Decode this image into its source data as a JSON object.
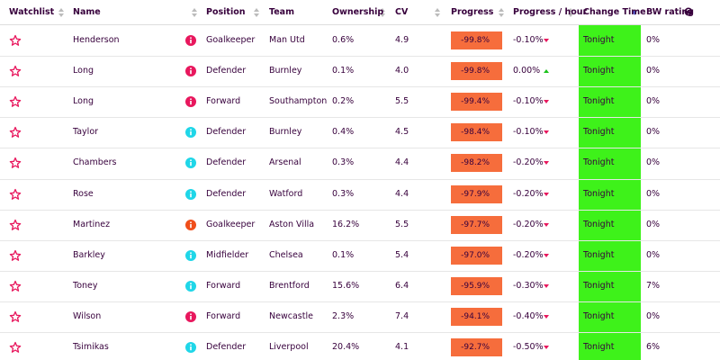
{
  "table": {
    "headers": [
      "Watchlist",
      "Name",
      "Position",
      "Team",
      "Ownership",
      "CV",
      "Progress",
      "Progress / hour",
      "Change Time",
      "BW rating"
    ],
    "rows": [
      {
        "name": "Henderson",
        "icon_color": "#e8175d",
        "position": "Goalkeeper",
        "team": "Man Utd",
        "ownership": "0.6%",
        "cv": "4.9",
        "progress": "-99.8%",
        "progress_hour": "-0.10%",
        "trend": "down",
        "change_time": "Tonight",
        "bw_rating": "0%"
      },
      {
        "name": "Long",
        "icon_color": "#e8175d",
        "position": "Defender",
        "team": "Burnley",
        "ownership": "0.1%",
        "cv": "4.0",
        "progress": "-99.8%",
        "progress_hour": "0.00%",
        "trend": "up",
        "change_time": "Tonight",
        "bw_rating": "0%"
      },
      {
        "name": "Long",
        "icon_color": "#e8175d",
        "position": "Forward",
        "team": "Southampton",
        "ownership": "0.2%",
        "cv": "5.5",
        "progress": "-99.4%",
        "progress_hour": "-0.10%",
        "trend": "down",
        "change_time": "Tonight",
        "bw_rating": "0%"
      },
      {
        "name": "Taylor",
        "icon_color": "#1fd6e8",
        "position": "Defender",
        "team": "Burnley",
        "ownership": "0.4%",
        "cv": "4.5",
        "progress": "-98.4%",
        "progress_hour": "-0.10%",
        "trend": "down",
        "change_time": "Tonight",
        "bw_rating": "0%"
      },
      {
        "name": "Chambers",
        "icon_color": "#1fd6e8",
        "position": "Defender",
        "team": "Arsenal",
        "ownership": "0.3%",
        "cv": "4.4",
        "progress": "-98.2%",
        "progress_hour": "-0.20%",
        "trend": "down",
        "change_time": "Tonight",
        "bw_rating": "0%"
      },
      {
        "name": "Rose",
        "icon_color": "#1fd6e8",
        "position": "Defender",
        "team": "Watford",
        "ownership": "0.3%",
        "cv": "4.4",
        "progress": "-97.9%",
        "progress_hour": "-0.20%",
        "trend": "down",
        "change_time": "Tonight",
        "bw_rating": "0%"
      },
      {
        "name": "Martinez",
        "icon_color": "#f04e1a",
        "position": "Goalkeeper",
        "team": "Aston Villa",
        "ownership": "16.2%",
        "cv": "5.5",
        "progress": "-97.7%",
        "progress_hour": "-0.20%",
        "trend": "down",
        "change_time": "Tonight",
        "bw_rating": "0%"
      },
      {
        "name": "Barkley",
        "icon_color": "#1fd6e8",
        "position": "Midfielder",
        "team": "Chelsea",
        "ownership": "0.1%",
        "cv": "5.4",
        "progress": "-97.0%",
        "progress_hour": "-0.20%",
        "trend": "down",
        "change_time": "Tonight",
        "bw_rating": "0%"
      },
      {
        "name": "Toney",
        "icon_color": "#1fd6e8",
        "position": "Forward",
        "team": "Brentford",
        "ownership": "15.6%",
        "cv": "6.4",
        "progress": "-95.9%",
        "progress_hour": "-0.30%",
        "trend": "down",
        "change_time": "Tonight",
        "bw_rating": "7%"
      },
      {
        "name": "Wilson",
        "icon_color": "#e8175d",
        "position": "Forward",
        "team": "Newcastle",
        "ownership": "2.3%",
        "cv": "7.4",
        "progress": "-94.1%",
        "progress_hour": "-0.40%",
        "trend": "down",
        "change_time": "Tonight",
        "bw_rating": "0%"
      },
      {
        "name": "Tsimikas",
        "icon_color": "#1fd6e8",
        "position": "Defender",
        "team": "Liverpool",
        "ownership": "20.4%",
        "cv": "4.1",
        "progress": "-92.7%",
        "progress_hour": "-0.50%",
        "trend": "down",
        "change_time": "Tonight",
        "bw_rating": "6%"
      }
    ]
  }
}
